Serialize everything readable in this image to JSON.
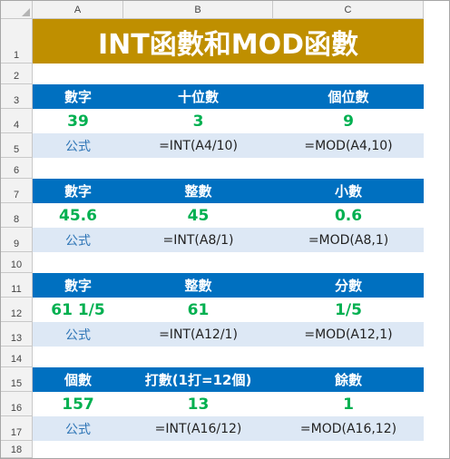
{
  "columns": [
    "A",
    "B",
    "C"
  ],
  "rows": [
    "1",
    "2",
    "3",
    "4",
    "5",
    "6",
    "7",
    "8",
    "9",
    "10",
    "11",
    "12",
    "13",
    "14",
    "15",
    "16",
    "17",
    "18"
  ],
  "title": "INT函數和MOD函數",
  "tables": [
    {
      "header": [
        "數字",
        "十位數",
        "個位數"
      ],
      "values": [
        "39",
        "3",
        "9"
      ],
      "formula": [
        "公式",
        "=INT(A4/10)",
        "=MOD(A4,10)"
      ]
    },
    {
      "header": [
        "數字",
        "整數",
        "小數"
      ],
      "values": [
        "45.6",
        "45",
        "0.6"
      ],
      "formula": [
        "公式",
        "=INT(A8/1)",
        "=MOD(A8,1)"
      ]
    },
    {
      "header": [
        "數字",
        "整數",
        "分數"
      ],
      "values": [
        "61 1/5",
        "61",
        "1/5"
      ],
      "formula": [
        "公式",
        "=INT(A12/1)",
        "=MOD(A12,1)"
      ]
    },
    {
      "header": [
        "個數",
        "打數(1打=12個)",
        "餘數"
      ],
      "values": [
        "157",
        "13",
        "1"
      ],
      "formula": [
        "公式",
        "=INT(A16/12)",
        "=MOD(A16,12)"
      ]
    }
  ],
  "colors": {
    "title_bg": "#bf8f00",
    "header_bg": "#0070c0",
    "value_text": "#00b050",
    "formula_bg": "#dde8f5",
    "formula_label_text": "#2e75b6"
  }
}
